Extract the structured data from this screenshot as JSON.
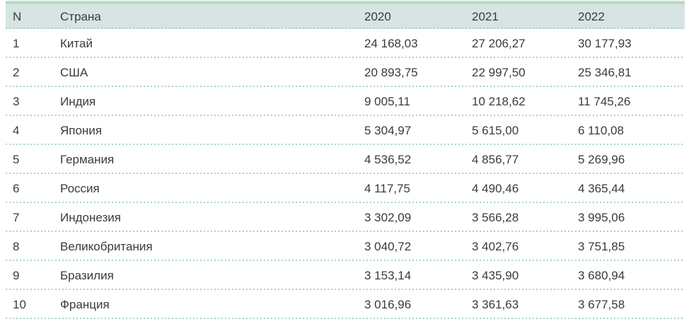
{
  "table": {
    "header": {
      "n": "N",
      "country": "Страна",
      "y2020": "2020",
      "y2021": "2021",
      "y2022": "2022"
    },
    "rows": [
      {
        "n": "1",
        "country": "Китай",
        "y2020": "24 168,03",
        "y2021": "27 206,27",
        "y2022": "30 177,93"
      },
      {
        "n": "2",
        "country": "США",
        "y2020": "20 893,75",
        "y2021": "22 997,50",
        "y2022": "25 346,81"
      },
      {
        "n": "3",
        "country": "Индия",
        "y2020": "9 005,11",
        "y2021": "10 218,62",
        "y2022": "11 745,26"
      },
      {
        "n": "4",
        "country": "Япония",
        "y2020": "5 304,97",
        "y2021": "5 615,00",
        "y2022": "6 110,08"
      },
      {
        "n": "5",
        "country": "Германия",
        "y2020": "4 536,52",
        "y2021": "4 856,77",
        "y2022": "5 269,96"
      },
      {
        "n": "6",
        "country": "Россия",
        "y2020": "4 117,75",
        "y2021": "4 490,46",
        "y2022": "4 365,44"
      },
      {
        "n": "7",
        "country": "Индонезия",
        "y2020": "3 302,09",
        "y2021": "3 566,28",
        "y2022": "3 995,06"
      },
      {
        "n": "8",
        "country": "Великобритания",
        "y2020": "3 040,72",
        "y2021": "3 402,76",
        "y2022": "3 751,85"
      },
      {
        "n": "9",
        "country": "Бразилия",
        "y2020": "3 153,14",
        "y2021": "3 435,90",
        "y2022": "3 680,94"
      },
      {
        "n": "10",
        "country": "Франция",
        "y2020": "3 016,96",
        "y2021": "3 361,63",
        "y2022": "3 677,58"
      }
    ]
  },
  "colors": {
    "header_bg": "#d6e4e3",
    "accent_strip_green": "#b2d5c5",
    "dotted_separator": "#a9d4c5",
    "text": "#3b3b3b"
  },
  "chart_data": {
    "type": "table",
    "categories": [
      "Китай",
      "США",
      "Индия",
      "Япония",
      "Германия",
      "Россия",
      "Индонезия",
      "Великобритания",
      "Бразилия",
      "Франция"
    ],
    "ranks": [
      1,
      2,
      3,
      4,
      5,
      6,
      7,
      8,
      9,
      10
    ],
    "series": [
      {
        "name": "2020",
        "values": [
          24168.03,
          20893.75,
          9005.11,
          5304.97,
          4536.52,
          4117.75,
          3302.09,
          3040.72,
          3153.14,
          3016.96
        ]
      },
      {
        "name": "2021",
        "values": [
          27206.27,
          22997.5,
          10218.62,
          5615.0,
          4856.77,
          4490.46,
          3566.28,
          3402.76,
          3435.9,
          3361.63
        ]
      },
      {
        "name": "2022",
        "values": [
          30177.93,
          25346.81,
          11745.26,
          6110.08,
          5269.96,
          4365.44,
          3995.06,
          3751.85,
          3680.94,
          3677.58
        ]
      }
    ],
    "columns": [
      "N",
      "Страна",
      "2020",
      "2021",
      "2022"
    ]
  }
}
